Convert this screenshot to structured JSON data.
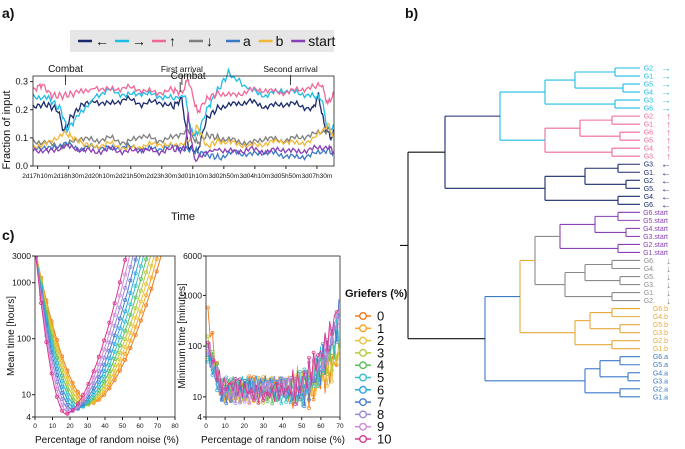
{
  "panel_labels": {
    "a": "a)",
    "b": "b)",
    "c": "c)"
  },
  "chart_data": [
    {
      "id": "a",
      "type": "line",
      "title": "",
      "xlabel": "Time",
      "ylabel": "Fraction of input",
      "ylim": [
        0,
        0.32
      ],
      "yticks": [
        "0.0",
        "0.1",
        "0.2",
        "0.3"
      ],
      "xticks": [
        "2d17h10m",
        "2d18h30m",
        "2d20h10m",
        "2d21h50m",
        "2d23h30m",
        "3d01h10m",
        "3d02h50m",
        "3d04h10m",
        "3d05h50m",
        "3d07h30m"
      ],
      "legend_placement": "top-center",
      "legend": [
        {
          "key": "left",
          "glyph": "←",
          "color": "#1a2a6c"
        },
        {
          "key": "right",
          "glyph": "→",
          "color": "#1ebde6"
        },
        {
          "key": "up",
          "glyph": "↑",
          "color": "#f0689a"
        },
        {
          "key": "down",
          "glyph": "↓",
          "color": "#7f7f7f"
        },
        {
          "key": "a",
          "glyph": "a",
          "color": "#3a79c8"
        },
        {
          "key": "b",
          "glyph": "b",
          "color": "#f0b83a"
        },
        {
          "key": "start",
          "glyph": "start",
          "color": "#8a3fb5"
        }
      ],
      "annotations": [
        {
          "text": "Combat",
          "x": 1.05
        },
        {
          "text": "First arrival",
          "x": 4.8
        },
        {
          "text": "Combat",
          "x": 5.0
        },
        {
          "text": "Second arrival",
          "x": 8.3
        }
      ],
      "series": [
        {
          "name": "←",
          "color": "#1a2a6c",
          "x": [
            0,
            0.4,
            0.8,
            1.0,
            1.2,
            1.6,
            2,
            2.5,
            3,
            3.5,
            4,
            4.5,
            4.8,
            5.0,
            5.3,
            5.6,
            6,
            6.5,
            7,
            7.5,
            8,
            8.5,
            9,
            9.2,
            9.4,
            9.6,
            9.7
          ],
          "y": [
            0.21,
            0.22,
            0.2,
            0.12,
            0.17,
            0.22,
            0.23,
            0.22,
            0.24,
            0.22,
            0.23,
            0.21,
            0.24,
            0.07,
            0.05,
            0.17,
            0.21,
            0.22,
            0.23,
            0.21,
            0.22,
            0.22,
            0.2,
            0.25,
            0.14,
            0.1,
            0.12
          ]
        },
        {
          "name": "→",
          "color": "#1ebde6",
          "x": [
            0,
            0.5,
            0.9,
            1.1,
            1.4,
            2,
            2.5,
            3,
            3.5,
            4,
            4.5,
            4.9,
            5.1,
            5.3,
            5.6,
            5.9,
            6.3,
            7,
            7.5,
            8,
            8.5,
            9,
            9.3,
            9.5,
            9.7
          ],
          "y": [
            0.25,
            0.24,
            0.2,
            0.13,
            0.17,
            0.25,
            0.27,
            0.25,
            0.26,
            0.25,
            0.24,
            0.25,
            0.12,
            0.11,
            0.2,
            0.26,
            0.33,
            0.27,
            0.25,
            0.27,
            0.26,
            0.25,
            0.24,
            0.13,
            0.14
          ]
        },
        {
          "name": "↑",
          "color": "#f0689a",
          "x": [
            0,
            0.3,
            0.6,
            1.0,
            1.4,
            2,
            2.5,
            3,
            3.5,
            4,
            4.5,
            4.8,
            5.0,
            5.3,
            5.6,
            6,
            6.5,
            7,
            7.5,
            8,
            8.5,
            9,
            9.3,
            9.5,
            9.7
          ],
          "y": [
            0.27,
            0.29,
            0.25,
            0.25,
            0.26,
            0.28,
            0.27,
            0.28,
            0.27,
            0.26,
            0.27,
            0.26,
            0.31,
            0.19,
            0.24,
            0.26,
            0.25,
            0.27,
            0.27,
            0.26,
            0.27,
            0.28,
            0.29,
            0.22,
            0.26
          ]
        },
        {
          "name": "↓",
          "color": "#7f7f7f",
          "x": [
            0,
            0.5,
            1.0,
            1.5,
            2,
            2.5,
            3,
            3.5,
            4,
            4.5,
            5.0,
            5.3,
            5.6,
            6,
            6.5,
            7,
            7.5,
            8,
            8.5,
            9,
            9.5,
            9.7
          ],
          "y": [
            0.09,
            0.08,
            0.07,
            0.1,
            0.09,
            0.1,
            0.08,
            0.11,
            0.09,
            0.1,
            0.13,
            0.08,
            0.11,
            0.1,
            0.09,
            0.08,
            0.1,
            0.09,
            0.1,
            0.11,
            0.13,
            0.11
          ]
        },
        {
          "name": "a",
          "color": "#3a79c8",
          "x": [
            0,
            0.5,
            1.0,
            1.5,
            2,
            2.5,
            3,
            3.5,
            4,
            4.5,
            5.0,
            5.3,
            5.6,
            6,
            6.5,
            7,
            7.5,
            8,
            8.5,
            9,
            9.5,
            9.7
          ],
          "y": [
            0.07,
            0.06,
            0.08,
            0.06,
            0.07,
            0.06,
            0.07,
            0.06,
            0.06,
            0.07,
            0.06,
            0.05,
            0.04,
            0.03,
            0.05,
            0.04,
            0.05,
            0.04,
            0.03,
            0.04,
            0.06,
            0.04
          ]
        },
        {
          "name": "b",
          "color": "#f0b83a",
          "x": [
            0,
            0.5,
            1.0,
            1.3,
            1.6,
            2,
            2.5,
            3,
            3.5,
            4,
            4.5,
            5.0,
            5.3,
            5.6,
            6,
            6.5,
            7,
            7.5,
            8,
            8.5,
            9,
            9.5,
            9.7
          ],
          "y": [
            0.07,
            0.08,
            0.12,
            0.1,
            0.08,
            0.07,
            0.08,
            0.06,
            0.07,
            0.08,
            0.07,
            0.09,
            0.14,
            0.07,
            0.09,
            0.08,
            0.07,
            0.08,
            0.09,
            0.08,
            0.09,
            0.15,
            0.1
          ]
        },
        {
          "name": "start",
          "color": "#8a3fb5",
          "x": [
            0,
            0.5,
            1.0,
            1.5,
            2,
            2.5,
            3,
            3.5,
            4,
            4.5,
            4.9,
            5.0,
            5.2,
            5.6,
            6,
            6.5,
            7,
            7.5,
            8,
            8.5,
            9,
            9.5,
            9.7
          ],
          "y": [
            0.06,
            0.05,
            0.07,
            0.06,
            0.05,
            0.06,
            0.05,
            0.06,
            0.05,
            0.06,
            0.06,
            0.18,
            0.02,
            0.05,
            0.06,
            0.05,
            0.06,
            0.05,
            0.06,
            0.05,
            0.06,
            0.07,
            0.05
          ]
        }
      ]
    },
    {
      "id": "b",
      "type": "dendrogram",
      "leaves": [
        {
          "label": "G2.",
          "glyph": "→",
          "color": "#1ebde6"
        },
        {
          "label": "G1.",
          "glyph": "→",
          "color": "#1ebde6"
        },
        {
          "label": "G5.",
          "glyph": "→",
          "color": "#1ebde6"
        },
        {
          "label": "G4.",
          "glyph": "→",
          "color": "#1ebde6"
        },
        {
          "label": "G3.",
          "glyph": "→",
          "color": "#1ebde6"
        },
        {
          "label": "G6.",
          "glyph": "→",
          "color": "#1ebde6"
        },
        {
          "label": "G2.",
          "glyph": "↑",
          "color": "#f0689a"
        },
        {
          "label": "G1.",
          "glyph": "↑",
          "color": "#f0689a"
        },
        {
          "label": "G6.",
          "glyph": "↑",
          "color": "#f0689a"
        },
        {
          "label": "G5.",
          "glyph": "↑",
          "color": "#f0689a"
        },
        {
          "label": "G4.",
          "glyph": "↑",
          "color": "#f0689a"
        },
        {
          "label": "G3.",
          "glyph": "↑",
          "color": "#f0689a"
        },
        {
          "label": "G3.",
          "glyph": "←",
          "color": "#1a2a6c"
        },
        {
          "label": "G1.",
          "glyph": "←",
          "color": "#1a2a6c"
        },
        {
          "label": "G2.",
          "glyph": "←",
          "color": "#1a2a6c"
        },
        {
          "label": "G5.",
          "glyph": "←",
          "color": "#1a2a6c"
        },
        {
          "label": "G4.",
          "glyph": "←",
          "color": "#1a2a6c"
        },
        {
          "label": "G6.",
          "glyph": "←",
          "color": "#1a2a6c"
        },
        {
          "label": "G6.start",
          "glyph": "",
          "color": "#8a3fb5"
        },
        {
          "label": "G5.start",
          "glyph": "",
          "color": "#8a3fb5"
        },
        {
          "label": "G4.start",
          "glyph": "",
          "color": "#8a3fb5"
        },
        {
          "label": "G3.start",
          "glyph": "",
          "color": "#8a3fb5"
        },
        {
          "label": "G2.start",
          "glyph": "",
          "color": "#8a3fb5"
        },
        {
          "label": "G1.start",
          "glyph": "",
          "color": "#8a3fb5"
        },
        {
          "label": "G6.",
          "glyph": "↓",
          "color": "#8a8a8a"
        },
        {
          "label": "G4.",
          "glyph": "↓",
          "color": "#8a8a8a"
        },
        {
          "label": "G5.",
          "glyph": "↓",
          "color": "#8a8a8a"
        },
        {
          "label": "G3.",
          "glyph": "↓",
          "color": "#8a8a8a"
        },
        {
          "label": "G1.",
          "glyph": "↓",
          "color": "#8a8a8a"
        },
        {
          "label": "G2.",
          "glyph": "↓",
          "color": "#8a8a8a"
        },
        {
          "label": "G6.b",
          "glyph": "",
          "color": "#e8a93a"
        },
        {
          "label": "G4.b",
          "glyph": "",
          "color": "#e8a93a"
        },
        {
          "label": "G5.b",
          "glyph": "",
          "color": "#e8a93a"
        },
        {
          "label": "G3.b",
          "glyph": "",
          "color": "#e8a93a"
        },
        {
          "label": "G2.b",
          "glyph": "",
          "color": "#e8a93a"
        },
        {
          "label": "G1.b",
          "glyph": "",
          "color": "#e8a93a"
        },
        {
          "label": "G6.a",
          "glyph": "",
          "color": "#3a79c8"
        },
        {
          "label": "G5.a",
          "glyph": "",
          "color": "#3a79c8"
        },
        {
          "label": "G4.a",
          "glyph": "",
          "color": "#3a79c8"
        },
        {
          "label": "G3.a",
          "glyph": "",
          "color": "#3a79c8"
        },
        {
          "label": "G2.a",
          "glyph": "",
          "color": "#3a79c8"
        },
        {
          "label": "G1.a",
          "glyph": "",
          "color": "#3a79c8"
        }
      ]
    },
    {
      "id": "c-left",
      "type": "line",
      "scale": "log",
      "xlabel": "Percentage of random noise (%)",
      "ylabel": "Mean time [hours]",
      "xlim": [
        0,
        80
      ],
      "ylim": [
        4,
        3000
      ],
      "xticks": [
        "0",
        "10",
        "20",
        "30",
        "40",
        "50",
        "60",
        "70",
        "80"
      ],
      "yticks": [
        "4",
        "10",
        "100",
        "1000",
        "3000"
      ],
      "model": "curve minimum near x = 30 - 1.4*griefers %, rising to 3000 h at both ends"
    },
    {
      "id": "c-right",
      "type": "line",
      "scale": "log",
      "xlabel": "Percentage of random noise (%)",
      "ylabel": "Minimum time [minutes]",
      "xlim": [
        0,
        70
      ],
      "ylim": [
        4,
        6000
      ],
      "xticks": [
        "0",
        "10",
        "20",
        "30",
        "40",
        "50",
        "60",
        "70"
      ],
      "yticks": [
        "4",
        "10",
        "100",
        "1000",
        "6000"
      ],
      "model": "noisy plateau near 10–20 min, higher at low and high noise"
    }
  ],
  "griefers": {
    "title": "Griefers (%)",
    "items": [
      {
        "label": "0",
        "color": "#f07a1a"
      },
      {
        "label": "1",
        "color": "#f5a623"
      },
      {
        "label": "2",
        "color": "#e8c33a"
      },
      {
        "label": "3",
        "color": "#b8c93a"
      },
      {
        "label": "4",
        "color": "#5cbf5c"
      },
      {
        "label": "5",
        "color": "#36c0c9"
      },
      {
        "label": "6",
        "color": "#2aa7e0"
      },
      {
        "label": "7",
        "color": "#4a7bd0"
      },
      {
        "label": "8",
        "color": "#9a8ad8"
      },
      {
        "label": "9",
        "color": "#d28ad8"
      },
      {
        "label": "10",
        "color": "#d6398f"
      }
    ]
  }
}
